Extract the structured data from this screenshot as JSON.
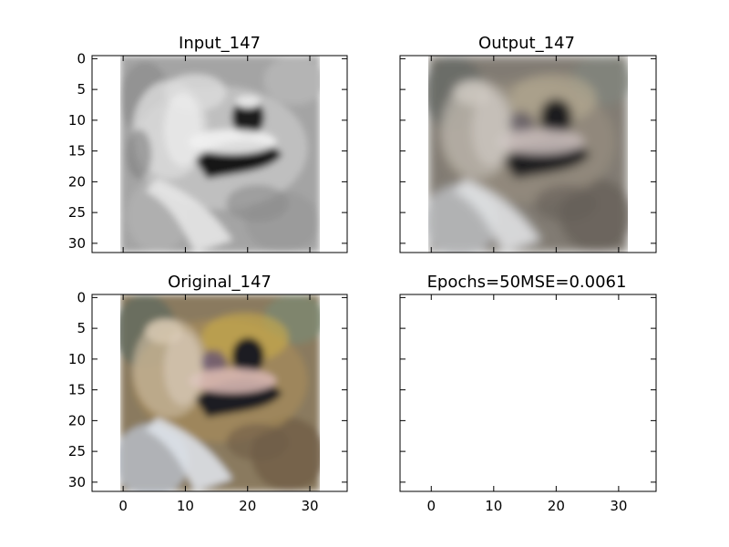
{
  "chart_data": [
    {
      "type": "image",
      "title": "Input_147",
      "image_content": "grayscale frog",
      "xlim": [
        -5,
        36
      ],
      "ylim": [
        31.5,
        -0.5
      ],
      "image_extent": [
        -0.5,
        31.5
      ],
      "xticks": [
        0,
        10,
        20,
        30
      ],
      "yticks": [
        0,
        5,
        10,
        15,
        20,
        25,
        30
      ],
      "show_xticklabels": false,
      "show_yticklabels": true
    },
    {
      "type": "image",
      "title": "Output_147",
      "image_content": "colorized frog (reconstruction)",
      "xlim": [
        -5,
        36
      ],
      "ylim": [
        31.5,
        -0.5
      ],
      "image_extent": [
        -0.5,
        31.5
      ],
      "xticks": [
        0,
        10,
        20,
        30
      ],
      "yticks": [
        0,
        5,
        10,
        15,
        20,
        25,
        30
      ],
      "show_xticklabels": false,
      "show_yticklabels": false
    },
    {
      "type": "image",
      "title": "Original_147",
      "image_content": "original color frog",
      "xlim": [
        -5,
        36
      ],
      "ylim": [
        31.5,
        -0.5
      ],
      "image_extent": [
        -0.5,
        31.5
      ],
      "xticks": [
        0,
        10,
        20,
        30
      ],
      "yticks": [
        0,
        5,
        10,
        15,
        20,
        25,
        30
      ],
      "show_xticklabels": true,
      "show_yticklabels": true
    },
    {
      "type": "image",
      "title": "Epochs=50MSE=0.0061",
      "image_content": "empty",
      "xlim": [
        -5,
        36
      ],
      "ylim": [
        31.5,
        -0.5
      ],
      "xticks": [
        0,
        10,
        20,
        30
      ],
      "yticks": [
        0,
        5,
        10,
        15,
        20,
        25,
        30
      ],
      "show_xticklabels": true,
      "show_yticklabels": false
    }
  ],
  "images": {
    "input_147": {
      "palette": "gray",
      "base": "#a6a6a6",
      "shadow": "#202020",
      "highlight": "#f2f2f2"
    },
    "output_147": {
      "palette": "muted",
      "base": "#8d8672",
      "shadow": "#231d18",
      "highlight": "#ebe3d2"
    },
    "original_147": {
      "palette": "color",
      "base": "#8c7a5c",
      "shadow": "#1e1a22",
      "highlight": "#e6dccf"
    }
  }
}
